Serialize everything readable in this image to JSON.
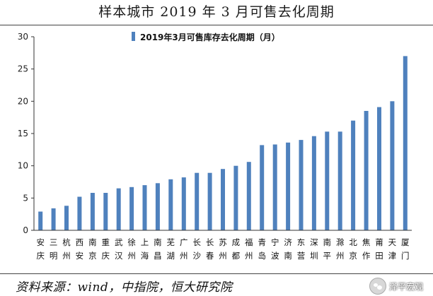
{
  "title": "样本城市 2019 年 3 月可售去化周期",
  "source": "资料来源：wind，中指院，恒大研究院",
  "watermark": {
    "text": "泽平宏观",
    "icon": "wechat-icon"
  },
  "chart_data": {
    "type": "bar",
    "legend": "2019年3月可售库存去化周期（月）",
    "legend_position": "top",
    "ylim": [
      0,
      30
    ],
    "yticks": [
      0,
      5,
      10,
      15,
      20,
      25,
      30
    ],
    "grid": false,
    "bar_color": "#4f81bd",
    "categories": [
      [
        "安",
        "庆"
      ],
      [
        "三",
        "明"
      ],
      [
        "杭",
        "州"
      ],
      [
        "西",
        "安"
      ],
      [
        "南",
        "京"
      ],
      [
        "重",
        "庆"
      ],
      [
        "武",
        "汉"
      ],
      [
        "徐",
        "州"
      ],
      [
        "上",
        "海"
      ],
      [
        "南",
        "昌"
      ],
      [
        "芜",
        "湖"
      ],
      [
        "广",
        "州"
      ],
      [
        "长",
        "沙"
      ],
      [
        "长",
        "春"
      ],
      [
        "苏",
        "州"
      ],
      [
        "成",
        "都"
      ],
      [
        "福",
        "州"
      ],
      [
        "青",
        "岛"
      ],
      [
        "宁",
        "波"
      ],
      [
        "济",
        "南"
      ],
      [
        "东",
        "营"
      ],
      [
        "深",
        "圳"
      ],
      [
        "南",
        "平"
      ],
      [
        "滁",
        "州"
      ],
      [
        "北",
        "京"
      ],
      [
        "焦",
        "作"
      ],
      [
        "莆",
        "田"
      ],
      [
        "天",
        "津"
      ],
      [
        "厦",
        "门"
      ]
    ],
    "values": [
      2.9,
      3.4,
      3.8,
      5.2,
      5.8,
      5.8,
      6.5,
      6.7,
      7.0,
      7.3,
      7.9,
      8.2,
      8.9,
      8.9,
      9.5,
      10.0,
      10.6,
      13.2,
      13.3,
      13.6,
      14.0,
      14.6,
      15.3,
      15.3,
      17.0,
      18.5,
      19.1,
      20.0,
      27.0
    ]
  }
}
